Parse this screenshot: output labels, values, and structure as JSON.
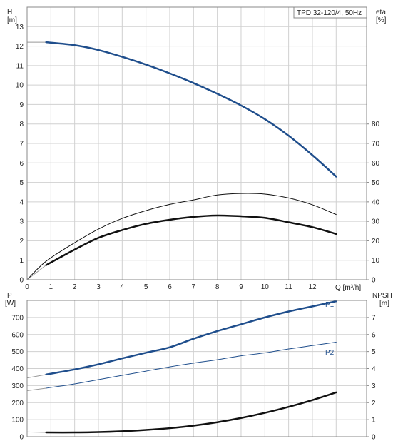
{
  "chart_data": [
    {
      "type": "line",
      "title": "TPD 32-120/4, 50Hz",
      "xlabel": "Q [m³/h]",
      "ylabel_left": [
        "H",
        "[m]"
      ],
      "ylabel_right": [
        "eta",
        "[%]"
      ],
      "xlim": [
        0,
        14
      ],
      "ylim_left": [
        0,
        14
      ],
      "ylim_right": [
        0,
        140
      ],
      "x_ticks": [
        "0",
        "1",
        "2",
        "3",
        "4",
        "5",
        "6",
        "7",
        "8",
        "9",
        "10",
        "11",
        "12"
      ],
      "y_left_ticks": [
        "0",
        "1",
        "2",
        "3",
        "4",
        "5",
        "6",
        "7",
        "8",
        "9",
        "10",
        "11",
        "12",
        "13"
      ],
      "y_right_ticks": [
        "0",
        "10",
        "20",
        "30",
        "40",
        "50",
        "60",
        "70",
        "80"
      ],
      "grid": true,
      "series": [
        {
          "id": "head",
          "axis": "left",
          "color": "#1f4e8c",
          "width": 2.5,
          "x": [
            0.8,
            2,
            3,
            4,
            5,
            6,
            7,
            8,
            9,
            10,
            11,
            12,
            13
          ],
          "y": [
            12.2,
            12.05,
            11.8,
            11.45,
            11.05,
            10.6,
            10.1,
            9.55,
            8.95,
            8.25,
            7.4,
            6.4,
            5.3
          ],
          "faint_start": [
            0,
            12.2
          ]
        },
        {
          "id": "eta-thin",
          "axis": "right",
          "color": "#111111",
          "width": 1,
          "x": [
            0,
            0.8,
            2,
            3,
            4,
            5,
            6,
            7,
            8,
            9,
            10,
            11,
            12,
            13
          ],
          "y": [
            0,
            9.5,
            19,
            26,
            31.5,
            35.5,
            38.7,
            41,
            43.5,
            44.3,
            44,
            42,
            38.5,
            33.5
          ]
        },
        {
          "id": "eta-thick",
          "axis": "right",
          "color": "#111111",
          "width": 2.5,
          "x": [
            0.8,
            2,
            3,
            4,
            5,
            6,
            7,
            8,
            9,
            10,
            11,
            12,
            13
          ],
          "y": [
            7.5,
            15.5,
            21.5,
            25.5,
            28.7,
            30.8,
            32.3,
            33,
            32.6,
            31.8,
            29.5,
            27,
            23.5
          ],
          "faint_start": [
            0,
            0
          ]
        }
      ]
    },
    {
      "type": "line",
      "xlabel": "",
      "ylabel_left": [
        "P",
        "[W]"
      ],
      "ylabel_right": [
        "NPSH",
        "[m]"
      ],
      "xlim": [
        0,
        14
      ],
      "ylim_left": [
        0,
        800
      ],
      "ylim_right": [
        0,
        8
      ],
      "y_left_ticks": [
        "0",
        "100",
        "200",
        "300",
        "400",
        "500",
        "600",
        "700"
      ],
      "y_right_ticks": [
        "0",
        "1",
        "2",
        "3",
        "4",
        "5",
        "6",
        "7"
      ],
      "grid": true,
      "series": [
        {
          "id": "p1",
          "name": "P1",
          "axis": "left",
          "color": "#1f4e8c",
          "width": 2.5,
          "x": [
            0.8,
            2,
            3,
            4,
            5,
            6,
            7,
            8,
            9,
            10,
            11,
            12,
            13
          ],
          "y": [
            365,
            395,
            425,
            460,
            493,
            525,
            575,
            620,
            660,
            700,
            735,
            765,
            795
          ],
          "faint_start": [
            0,
            345
          ]
        },
        {
          "id": "p2",
          "name": "P2",
          "axis": "left",
          "color": "#1f4e8c",
          "width": 1,
          "x": [
            0.8,
            2,
            3,
            4,
            5,
            6,
            7,
            8,
            9,
            10,
            11,
            12,
            13
          ],
          "y": [
            285,
            310,
            335,
            360,
            385,
            410,
            432,
            452,
            475,
            492,
            515,
            535,
            555
          ],
          "faint_start": [
            0,
            270
          ]
        },
        {
          "id": "npsh",
          "axis": "right",
          "color": "#111111",
          "width": 2.5,
          "x": [
            0.8,
            2,
            3,
            4,
            5,
            6,
            7,
            8,
            9,
            10,
            11,
            12,
            13
          ],
          "y": [
            0.25,
            0.25,
            0.27,
            0.32,
            0.4,
            0.5,
            0.65,
            0.85,
            1.1,
            1.4,
            1.75,
            2.15,
            2.6
          ],
          "faint_start": [
            0,
            0.28
          ]
        }
      ]
    }
  ]
}
